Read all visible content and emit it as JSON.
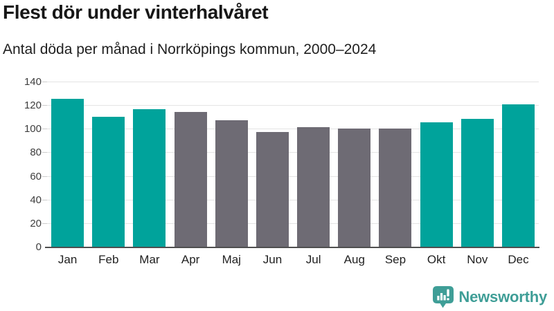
{
  "chart_data": {
    "type": "bar",
    "title": "Flest dör under vinterhalvåret",
    "subtitle": "Antal döda per månad i Norrköpings kommun, 2000–2024",
    "categories": [
      "Jan",
      "Feb",
      "Mar",
      "Apr",
      "Maj",
      "Jun",
      "Jul",
      "Aug",
      "Sep",
      "Okt",
      "Nov",
      "Dec"
    ],
    "values": [
      126,
      111,
      117,
      115,
      108,
      98,
      102,
      101,
      101,
      106,
      109,
      121
    ],
    "highlight_flags": [
      true,
      true,
      true,
      false,
      false,
      false,
      false,
      false,
      false,
      true,
      true,
      true
    ],
    "colors": {
      "highlight": "#00a39b",
      "base": "#6e6b74",
      "gridline": "#e4e4e4",
      "axis_line": "#4f4f4f"
    },
    "xlabel": "",
    "ylabel": "",
    "ylim": [
      0,
      140
    ],
    "ytick_step": 20,
    "yticks": [
      0,
      20,
      40,
      60,
      80,
      100,
      120,
      140
    ],
    "grid": true,
    "legend": "none"
  },
  "branding": {
    "logo_text": "Newsworthy",
    "logo_icon": "speech-bubble-bar-chart-icon",
    "color": "#3f9e97"
  }
}
